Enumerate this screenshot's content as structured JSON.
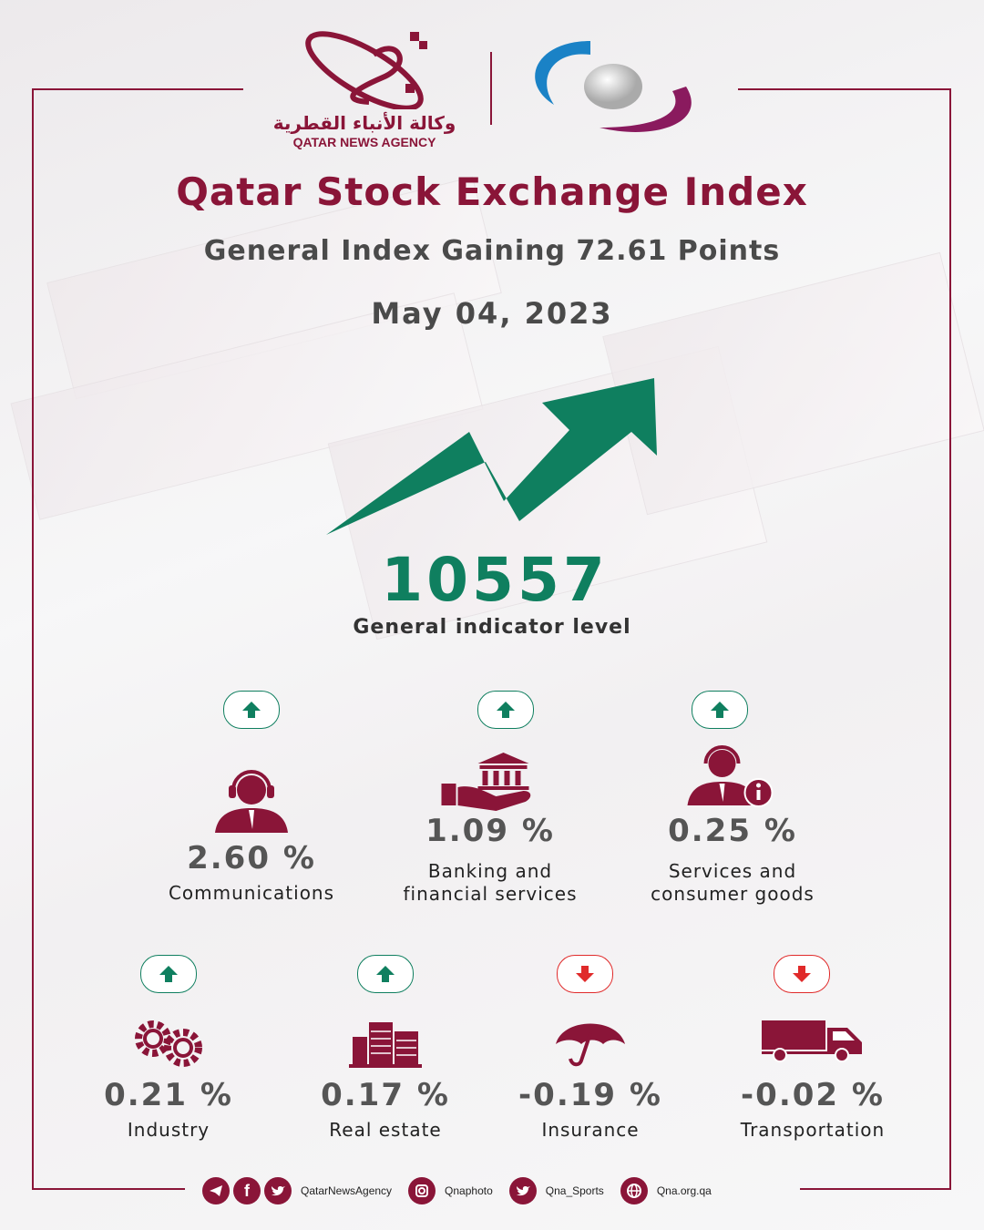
{
  "brand": {
    "agency_name_ar": "وكالة الأنباء القطرية",
    "agency_name_en": "QATAR NEWS AGENCY",
    "colors": {
      "maroon": "#8a1538",
      "green": "#0f7f5f",
      "red": "#e02a2a"
    }
  },
  "header": {
    "title": "Qatar Stock Exchange Index",
    "subtitle": "General Index Gaining 72.61 Points",
    "date": "May 04, 2023"
  },
  "main_indicator": {
    "value": "10557",
    "label": "General indicator level",
    "trend": "up"
  },
  "sectors": [
    {
      "name": "Communications",
      "change": "2.60 %",
      "trend": "up",
      "icon": "call-center-agent-icon"
    },
    {
      "name_line1": "Banking and",
      "name_line2": "financial services",
      "change": "1.09 %",
      "trend": "up",
      "icon": "bank-hand-icon"
    },
    {
      "name_line1": "Services and",
      "name_line2": "consumer goods",
      "change": "0.25 %",
      "trend": "up",
      "icon": "service-agent-info-icon"
    },
    {
      "name": "Industry",
      "change": "0.21 %",
      "trend": "up",
      "icon": "gears-icon"
    },
    {
      "name": "Real estate",
      "change": "0.17 %",
      "trend": "up",
      "icon": "buildings-icon"
    },
    {
      "name": "Insurance",
      "change": "-0.19 %",
      "trend": "down",
      "icon": "umbrella-icon"
    },
    {
      "name": "Transportation",
      "change": "-0.02 %",
      "trend": "down",
      "icon": "truck-icon"
    }
  ],
  "footer": {
    "handle_main": "QatarNewsAgency",
    "instagram": "Qnaphoto",
    "twitter_sports": "Qna_Sports",
    "website": "Qna.org.qa"
  }
}
